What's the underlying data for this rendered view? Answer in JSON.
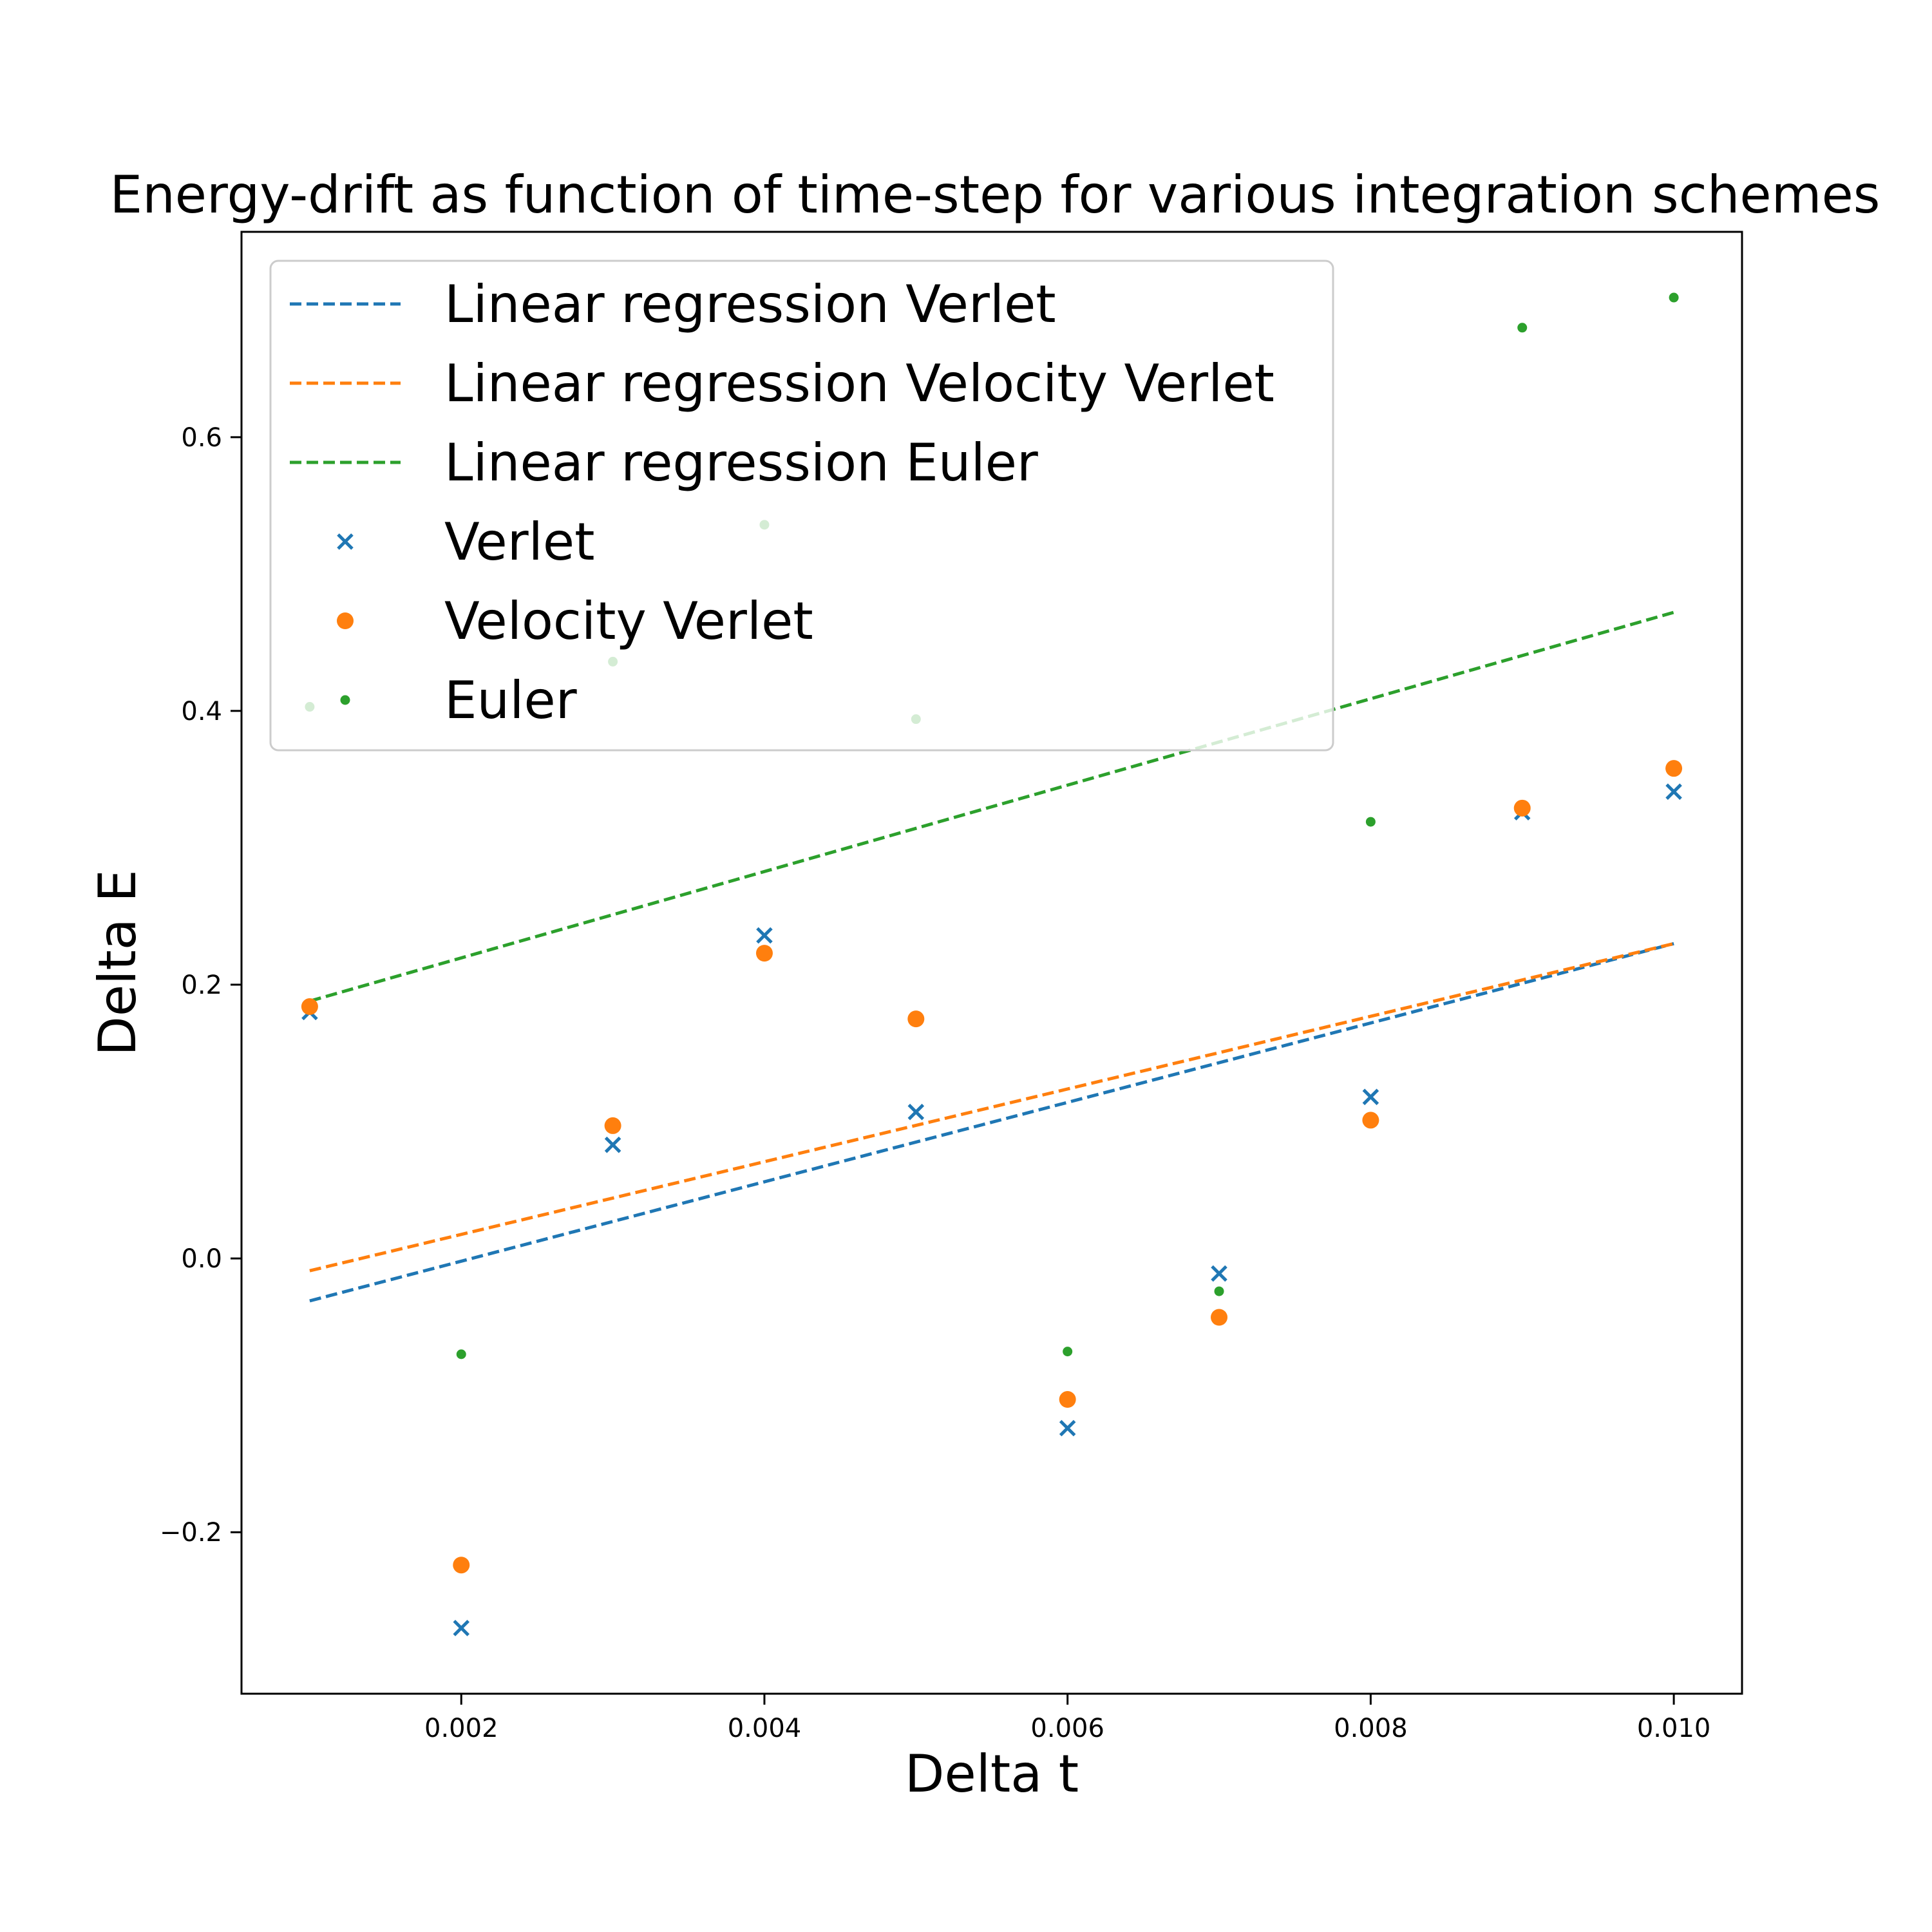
{
  "chart_data": {
    "type": "scatter",
    "title": "Energy-drift as function of time-step for various integration schemes",
    "xlabel": "Delta t",
    "ylabel": "Delta E",
    "xlim": [
      0.00055,
      0.01045
    ],
    "ylim": [
      -0.318,
      0.75
    ],
    "xticks": [
      0.002,
      0.004,
      0.006,
      0.008,
      0.01
    ],
    "xtick_labels": [
      "0.002",
      "0.004",
      "0.006",
      "0.008",
      "0.010"
    ],
    "yticks": [
      -0.2,
      0.0,
      0.2,
      0.4,
      0.6
    ],
    "ytick_labels": [
      "−0.2",
      "0.0",
      "0.2",
      "0.4",
      "0.6"
    ],
    "grid": false,
    "legend_position": "top-left",
    "x": [
      0.001,
      0.002,
      0.003,
      0.004,
      0.005,
      0.006,
      0.007,
      0.008,
      0.009,
      0.01
    ],
    "series": [
      {
        "name": "Verlet",
        "kind": "scatter",
        "marker": "x",
        "color": "#1f77b4",
        "values": [
          0.18,
          -0.27,
          0.083,
          0.236,
          0.107,
          -0.124,
          -0.011,
          0.118,
          0.326,
          0.341
        ]
      },
      {
        "name": "Velocity Verlet",
        "kind": "scatter",
        "marker": "circle",
        "color": "#ff7f0e",
        "values": [
          0.184,
          -0.224,
          0.097,
          0.223,
          0.175,
          -0.103,
          -0.043,
          0.101,
          0.329,
          0.358
        ]
      },
      {
        "name": "Euler",
        "kind": "scatter",
        "marker": "dot",
        "color": "#2ca02c",
        "values": [
          0.403,
          -0.07,
          0.436,
          0.536,
          0.394,
          -0.068,
          -0.024,
          0.319,
          0.68,
          0.702
        ]
      },
      {
        "name": "Linear regression Verlet",
        "kind": "line",
        "style": "dashed",
        "color": "#1f77b4",
        "x": [
          0.001,
          0.01
        ],
        "values": [
          -0.031,
          0.23
        ]
      },
      {
        "name": "Linear regression Velocity Verlet",
        "kind": "line",
        "style": "dashed",
        "color": "#ff7f0e",
        "x": [
          0.001,
          0.01
        ],
        "values": [
          -0.009,
          0.23
        ]
      },
      {
        "name": "Linear regression Euler",
        "kind": "line",
        "style": "dashed",
        "color": "#2ca02c",
        "x": [
          0.001,
          0.01
        ],
        "values": [
          0.188,
          0.472
        ]
      }
    ],
    "legend_entries": [
      "Linear regression Verlet",
      "Linear regression Velocity Verlet",
      "Linear regression Euler",
      "Verlet",
      "Velocity Verlet",
      "Euler"
    ]
  }
}
